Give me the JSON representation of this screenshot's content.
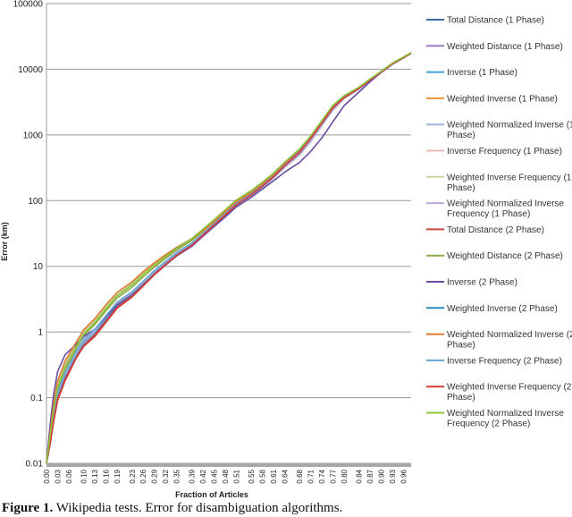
{
  "caption": {
    "label": "Figure 1.",
    "text": "Wikipedia tests. Error for disambiguation algorithms."
  },
  "chart_data": {
    "type": "line",
    "title": "",
    "xlabel": "Fraction of Articles",
    "ylabel": "Error (km)",
    "yscale": "log",
    "ylim": [
      0.01,
      100000
    ],
    "xlim": [
      0,
      0.98
    ],
    "grid": "horizontal",
    "legend": "right",
    "y_ticks": [
      "0.01",
      "0.1",
      "1",
      "10",
      "100",
      "1000",
      "10000",
      "100000"
    ],
    "x_ticks": [
      "0.00",
      "0.03",
      "0.06",
      "0.10",
      "0.13",
      "0.16",
      "0.19",
      "0.23",
      "0.26",
      "0.29",
      "0.32",
      "0.35",
      "0.39",
      "0.42",
      "0.45",
      "0.48",
      "0.51",
      "0.55",
      "0.58",
      "0.61",
      "0.64",
      "0.68",
      "0.71",
      "0.74",
      "0.77",
      "0.80",
      "0.84",
      "0.87",
      "0.90",
      "0.93",
      "0.96"
    ],
    "x": [
      0,
      0.01,
      0.02,
      0.03,
      0.05,
      0.08,
      0.1,
      0.13,
      0.16,
      0.19,
      0.23,
      0.26,
      0.29,
      0.32,
      0.35,
      0.39,
      0.42,
      0.45,
      0.48,
      0.51,
      0.55,
      0.58,
      0.61,
      0.64,
      0.68,
      0.71,
      0.74,
      0.77,
      0.8,
      0.84,
      0.87,
      0.9,
      0.93,
      0.96,
      0.98
    ],
    "series": [
      {
        "name": "Total Distance (1 Phase)",
        "color": "#3a64a8",
        "values": [
          0.01,
          0.02,
          0.05,
          0.1,
          0.2,
          0.45,
          0.7,
          1.0,
          1.6,
          2.6,
          3.8,
          5.5,
          8,
          11,
          15,
          21,
          30,
          42,
          60,
          85,
          120,
          160,
          220,
          320,
          500,
          800,
          1400,
          2400,
          3600,
          5000,
          6800,
          9000,
          12000,
          15000,
          17500
        ]
      },
      {
        "name": "Weighted Distance (1 Phase)",
        "color": "#9a7cc0",
        "values": [
          0.01,
          0.022,
          0.055,
          0.11,
          0.22,
          0.48,
          0.74,
          1.05,
          1.7,
          2.7,
          3.9,
          5.6,
          8.2,
          11.3,
          15.5,
          21.5,
          30.5,
          43,
          61,
          86,
          121,
          162,
          225,
          325,
          510,
          810,
          1420,
          2420,
          3620,
          5050,
          6850,
          9050,
          12100,
          15100,
          17600
        ]
      },
      {
        "name": "Inverse (1 Phase)",
        "color": "#3fa3d8",
        "values": [
          0.01,
          0.024,
          0.06,
          0.12,
          0.24,
          0.5,
          0.76,
          1.08,
          1.75,
          2.8,
          4.0,
          5.8,
          8.4,
          11.6,
          16,
          22,
          31,
          44,
          62,
          88,
          124,
          165,
          228,
          330,
          520,
          820,
          1440,
          2450,
          3650,
          5100,
          6900,
          9100,
          12200,
          15200,
          17700
        ]
      },
      {
        "name": "Weighted Inverse (1 Phase)",
        "color": "#f0923a",
        "values": [
          0.01,
          0.026,
          0.07,
          0.15,
          0.3,
          0.6,
          0.95,
          1.4,
          2.3,
          3.6,
          5.3,
          7.6,
          10.5,
          14,
          18.5,
          25,
          34,
          47,
          66,
          93,
          130,
          175,
          240,
          350,
          560,
          900,
          1550,
          2700,
          3800,
          5200,
          7000,
          9200,
          12300,
          15300,
          17800
        ]
      },
      {
        "name": "Weighted Normalized Inverse (1 Phase)",
        "color": "#9fb4dc",
        "values": [
          0.01,
          0.021,
          0.052,
          0.105,
          0.21,
          0.46,
          0.72,
          1.02,
          1.65,
          2.65,
          3.85,
          5.55,
          8.1,
          11.2,
          15.3,
          21.3,
          30.2,
          42.5,
          60.5,
          85.5,
          120.5,
          161,
          222,
          322,
          505,
          805,
          1410,
          2410,
          3610,
          5020,
          6820,
          9020,
          12050,
          15050,
          17550
        ]
      },
      {
        "name": "Inverse Frequency (1 Phase)",
        "color": "#e8b8b0",
        "values": [
          0.01,
          0.028,
          0.075,
          0.16,
          0.32,
          0.62,
          0.98,
          1.45,
          2.35,
          3.65,
          5.4,
          7.7,
          10.6,
          14.2,
          18.8,
          25.5,
          34.5,
          48,
          67,
          95,
          133,
          178,
          245,
          355,
          570,
          910,
          1560,
          2720,
          3820,
          5220,
          7020,
          9220,
          12320,
          15320,
          17820
        ]
      },
      {
        "name": "Weighted Inverse Frequency (1 Phase)",
        "color": "#c4d89c",
        "values": [
          0.01,
          0.03,
          0.08,
          0.17,
          0.34,
          0.66,
          1.02,
          1.5,
          2.4,
          3.7,
          5.5,
          7.8,
          10.8,
          14.5,
          19.2,
          26.5,
          36,
          50,
          70,
          98,
          136,
          182,
          250,
          360,
          575,
          920,
          1570,
          2730,
          3830,
          5230,
          7030,
          9230,
          12330,
          15330,
          17830
        ]
      },
      {
        "name": "Weighted Normalized Inverse Frequency (1 Phase)",
        "color": "#b8a8d4",
        "values": [
          0.01,
          0.023,
          0.058,
          0.115,
          0.23,
          0.49,
          0.75,
          1.06,
          1.72,
          2.75,
          3.95,
          5.7,
          8.3,
          11.45,
          15.7,
          21.7,
          30.7,
          43.5,
          61.5,
          87,
          122,
          163,
          226,
          327,
          515,
          815,
          1430,
          2440,
          3640,
          5080,
          6880,
          9080,
          12150,
          15150,
          17650
        ]
      },
      {
        "name": "Total Distance (2 Phase)",
        "color": "#c84a3e",
        "values": [
          0.01,
          0.02,
          0.045,
          0.09,
          0.18,
          0.4,
          0.6,
          0.85,
          1.4,
          2.3,
          3.4,
          5.0,
          7.4,
          10.4,
          14.5,
          20.5,
          29.5,
          42,
          60,
          86,
          122,
          165,
          230,
          340,
          540,
          880,
          1500,
          2600,
          3700,
          5100,
          6900,
          9100,
          12100,
          15100,
          17600
        ]
      },
      {
        "name": "Weighted Distance (2 Phase)",
        "color": "#8daa4c",
        "values": [
          0.01,
          0.025,
          0.065,
          0.13,
          0.27,
          0.56,
          0.88,
          1.3,
          2.1,
          3.3,
          4.8,
          6.9,
          9.7,
          13.2,
          17.7,
          24.5,
          34,
          48,
          68,
          97,
          136,
          183,
          252,
          370,
          590,
          950,
          1620,
          2800,
          3900,
          5300,
          7100,
          9300,
          12400,
          15400,
          17900
        ]
      },
      {
        "name": "Inverse (2 Phase)",
        "color": "#6a4ca0",
        "values": [
          0.01,
          0.04,
          0.12,
          0.25,
          0.45,
          0.65,
          0.85,
          1.1,
          1.7,
          2.6,
          3.7,
          5.3,
          7.6,
          10.5,
          14.4,
          20,
          28.5,
          40,
          56,
          80,
          112,
          150,
          200,
          270,
          380,
          560,
          900,
          1600,
          2800,
          4500,
          6500,
          9000,
          12000,
          15000,
          17500
        ]
      },
      {
        "name": "Weighted Inverse (2 Phase)",
        "color": "#2e8cc4",
        "values": [
          0.01,
          0.022,
          0.05,
          0.1,
          0.2,
          0.42,
          0.64,
          0.92,
          1.5,
          2.45,
          3.6,
          5.2,
          7.7,
          10.8,
          14.9,
          21,
          30,
          42.5,
          60.5,
          86.5,
          123,
          166,
          232,
          345,
          550,
          895,
          1520,
          2630,
          3730,
          5130,
          6930,
          9130,
          12130,
          15130,
          17630
        ]
      },
      {
        "name": "Weighted Normalized Inverse (2 Phase)",
        "color": "#e07a30",
        "values": [
          0.01,
          0.03,
          0.085,
          0.18,
          0.36,
          0.7,
          1.08,
          1.6,
          2.6,
          4.0,
          5.8,
          8.3,
          11.3,
          15,
          19.5,
          26,
          35,
          48.5,
          68,
          96,
          134,
          180,
          248,
          365,
          585,
          940,
          1600,
          2780,
          3880,
          5280,
          7080,
          9280,
          12380,
          15380,
          17880
        ]
      },
      {
        "name": "Inverse Frequency (2 Phase)",
        "color": "#6aa8d0",
        "values": [
          0.01,
          0.024,
          0.06,
          0.12,
          0.24,
          0.5,
          0.77,
          1.1,
          1.78,
          2.85,
          4.1,
          5.9,
          8.6,
          11.9,
          16.3,
          22.5,
          31.5,
          44.5,
          63,
          90,
          127,
          170,
          236,
          350,
          560,
          905,
          1540,
          2660,
          3760,
          5160,
          6960,
          9160,
          12160,
          15160,
          17660
        ]
      },
      {
        "name": "Weighted Inverse Frequency (2 Phase)",
        "color": "#d83a3a",
        "values": [
          0.01,
          0.021,
          0.048,
          0.095,
          0.19,
          0.41,
          0.62,
          0.9,
          1.45,
          2.38,
          3.5,
          5.1,
          7.55,
          10.6,
          14.7,
          20.7,
          29.7,
          42.2,
          60.2,
          86.2,
          122.5,
          165.5,
          231,
          342,
          545,
          888,
          1510,
          2615,
          3715,
          5115,
          6915,
          9115,
          12115,
          15115,
          17615
        ]
      },
      {
        "name": "Weighted Normalized Inverse Frequency (2 Phase)",
        "color": "#8cc43c",
        "values": [
          0.01,
          0.027,
          0.07,
          0.145,
          0.29,
          0.6,
          0.93,
          1.38,
          2.25,
          3.55,
          5.2,
          7.5,
          10.4,
          14.1,
          18.9,
          26.2,
          36.5,
          51,
          72,
          102,
          142,
          190,
          262,
          385,
          610,
          970,
          1650,
          2850,
          3950,
          5350,
          7150,
          9350,
          12450,
          15450,
          17950
        ]
      }
    ]
  }
}
